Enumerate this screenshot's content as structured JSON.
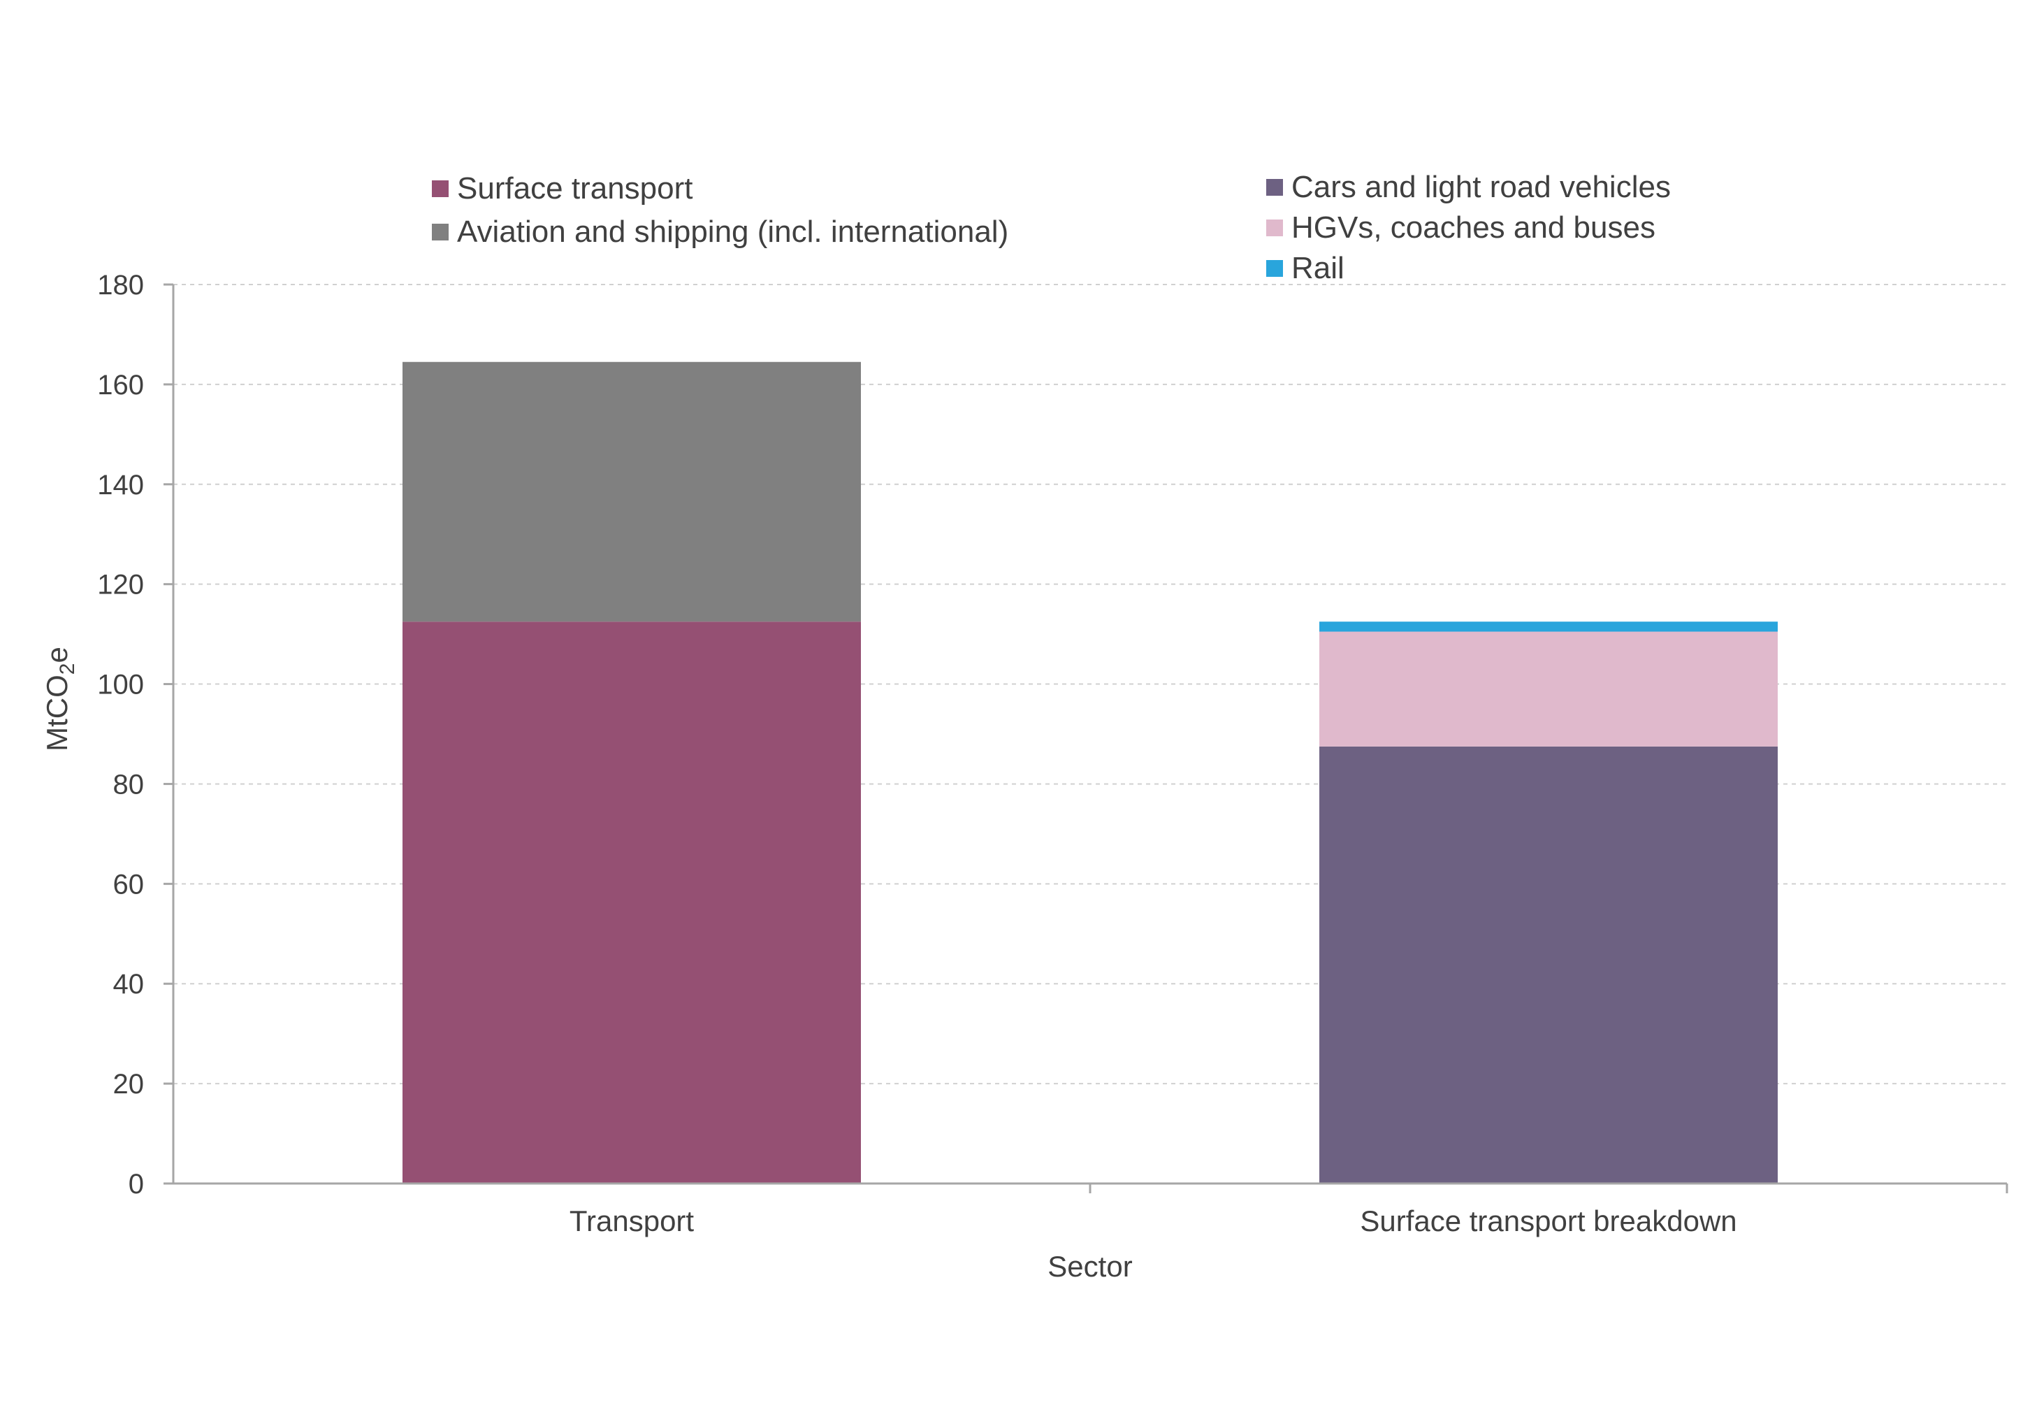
{
  "chart_data": {
    "type": "bar",
    "stacked": true,
    "categories": [
      "Transport",
      "Surface transport breakdown"
    ],
    "xlabel": "Sector",
    "ylabel": {
      "main": "MtCO",
      "subscript": "2",
      "suffix": "e"
    },
    "ylim": [
      0,
      180
    ],
    "yticks": [
      0,
      20,
      40,
      60,
      80,
      100,
      120,
      140,
      160,
      180
    ],
    "grid": true,
    "series": [
      {
        "name": "Surface transport",
        "color": "#955073",
        "values": [
          112.5,
          0
        ]
      },
      {
        "name": "Aviation and shipping (incl. international)",
        "color": "#808080",
        "values": [
          52,
          0
        ]
      },
      {
        "name": "Cars and light road vehicles",
        "color": "#6d6182",
        "values": [
          0,
          87.5
        ]
      },
      {
        "name": "HGVs, coaches and buses",
        "color": "#e0b9cc",
        "values": [
          0,
          23
        ]
      },
      {
        "name": "Rail",
        "color": "#29a5dc",
        "values": [
          0,
          2
        ]
      }
    ],
    "legends": [
      {
        "position": "top-left",
        "entries": [
          "Surface transport",
          "Aviation and shipping (incl. international)"
        ]
      },
      {
        "position": "top-right",
        "entries": [
          "Cars and light road vehicles",
          "HGVs, coaches and buses",
          "Rail"
        ]
      }
    ]
  }
}
